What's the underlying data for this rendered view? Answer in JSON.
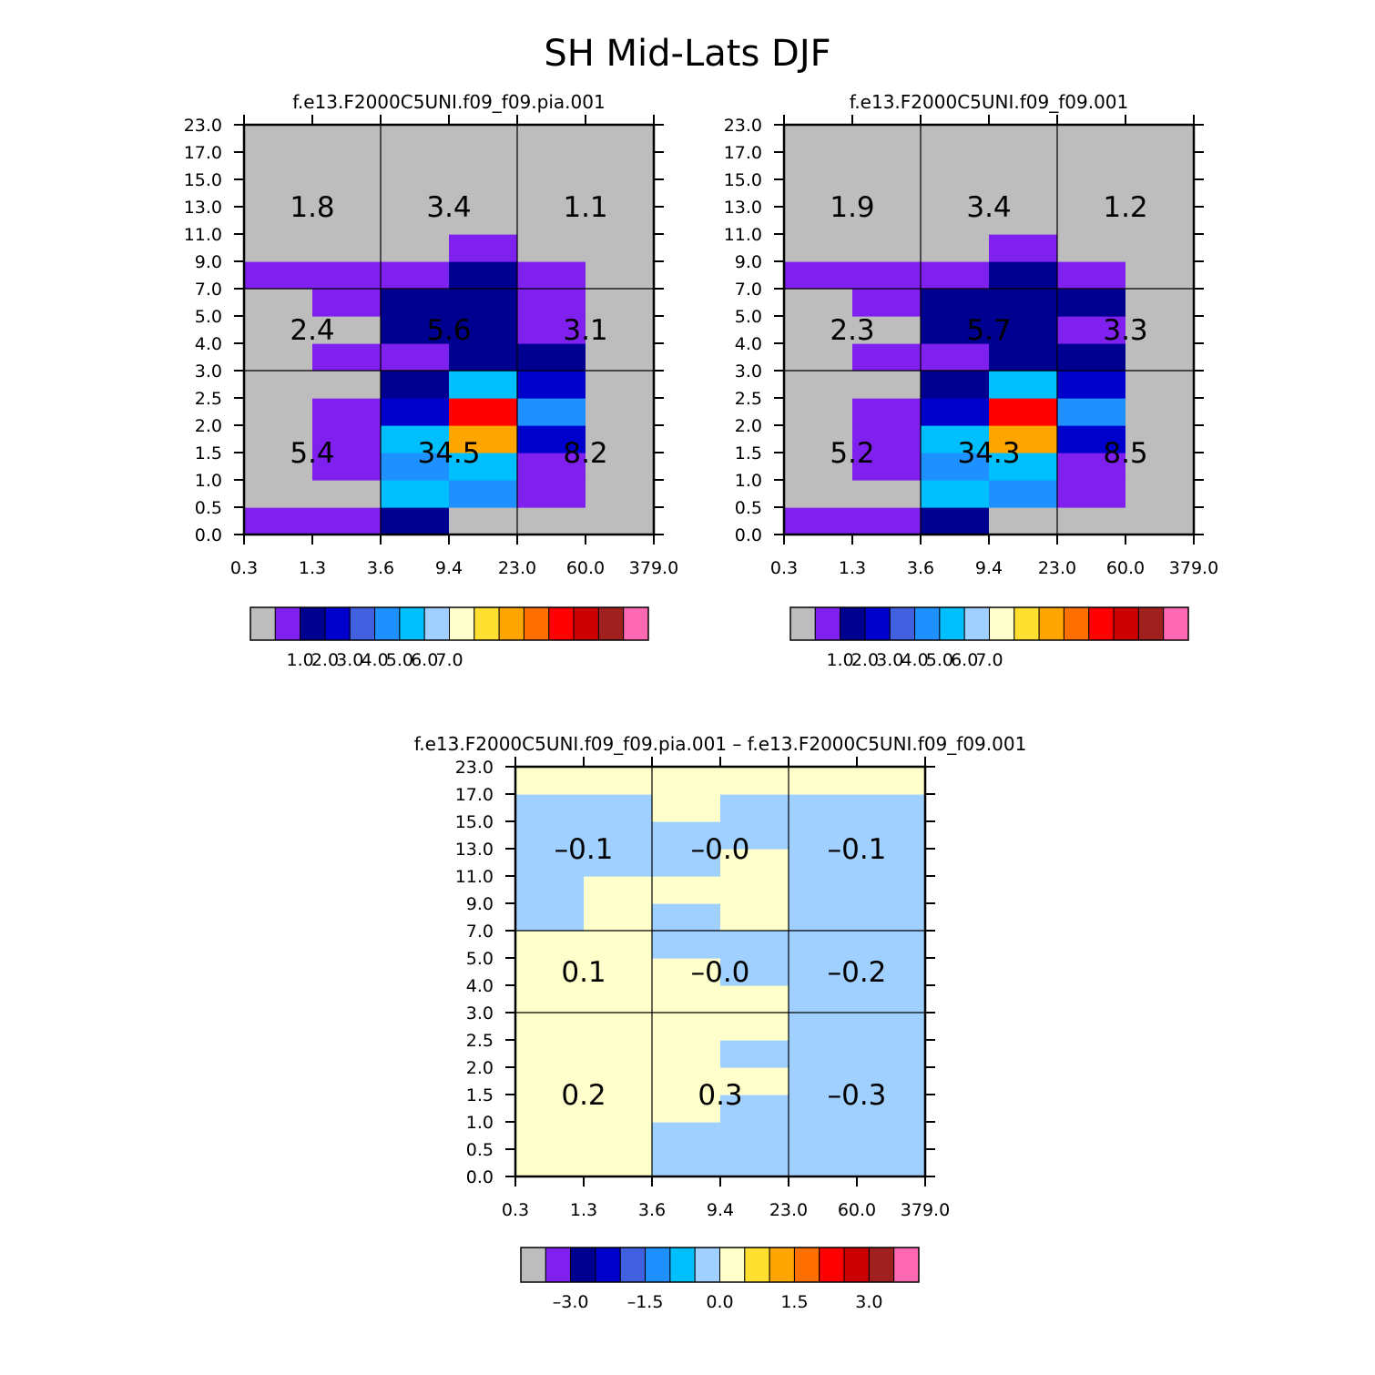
{
  "title": "SH Mid-Lats DJF",
  "colors": {
    "c0": "#bdbdbd",
    "c1": "#8020ee",
    "c2": "#000090",
    "c3": "#0000cc",
    "c4": "#4060e0",
    "c5": "#1e90ff",
    "c6": "#00bfff",
    "c7": "#a0d0ff",
    "c8": "#ffffcc",
    "c9": "#ffe030",
    "c10": "#ffa500",
    "c11": "#ff7000",
    "c12": "#ff0000",
    "c13": "#cc0000",
    "c14": "#a02020",
    "c15": "#ff69b4"
  },
  "chart_data": [
    {
      "type": "heatmap",
      "title": "f.e13.F2000C5UNI.f09_f09.pia.001",
      "xlabel": "",
      "ylabel": "",
      "x_tick_labels": [
        "0.3",
        "1.3",
        "3.6",
        "9.4",
        "23.0",
        "60.0",
        "379.0"
      ],
      "y_tick_labels": [
        "0.0",
        "0.5",
        "1.0",
        "1.5",
        "2.0",
        "2.5",
        "3.0",
        "4.0",
        "5.0",
        "7.0",
        "9.0",
        "11.0",
        "13.0",
        "15.0",
        "17.0",
        "23.0"
      ],
      "grid_color_index": [
        [
          1,
          1,
          2,
          0,
          0,
          0
        ],
        [
          0,
          0,
          6,
          5,
          1,
          0
        ],
        [
          0,
          1,
          5,
          6,
          1,
          0
        ],
        [
          0,
          1,
          6,
          10,
          3,
          0
        ],
        [
          0,
          1,
          3,
          12,
          5,
          0
        ],
        [
          0,
          0,
          2,
          6,
          3,
          0
        ],
        [
          0,
          1,
          1,
          2,
          2,
          0
        ],
        [
          0,
          0,
          2,
          2,
          1,
          0
        ],
        [
          0,
          1,
          2,
          2,
          1,
          0
        ],
        [
          1,
          1,
          1,
          2,
          1,
          0
        ],
        [
          0,
          0,
          0,
          1,
          0,
          0
        ],
        [
          0,
          0,
          0,
          0,
          0,
          0
        ],
        [
          0,
          0,
          0,
          0,
          0,
          0
        ],
        [
          0,
          0,
          0,
          0,
          0,
          0
        ],
        [
          0,
          0,
          0,
          0,
          0,
          0
        ]
      ],
      "region_values": [
        [
          "5.4",
          "34.5",
          "8.2"
        ],
        [
          "2.4",
          "5.6",
          "3.1"
        ],
        [
          "1.8",
          "3.4",
          "1.1"
        ]
      ],
      "colorbar_labels": [
        "1.0",
        "2.0",
        "3.0",
        "4.0",
        "5.0",
        "6.0",
        "7.0"
      ]
    },
    {
      "type": "heatmap",
      "title": "f.e13.F2000C5UNI.f09_f09.001",
      "xlabel": "",
      "ylabel": "",
      "x_tick_labels": [
        "0.3",
        "1.3",
        "3.6",
        "9.4",
        "23.0",
        "60.0",
        "379.0"
      ],
      "y_tick_labels": [
        "0.0",
        "0.5",
        "1.0",
        "1.5",
        "2.0",
        "2.5",
        "3.0",
        "4.0",
        "5.0",
        "7.0",
        "9.0",
        "11.0",
        "13.0",
        "15.0",
        "17.0",
        "23.0"
      ],
      "grid_color_index": [
        [
          1,
          1,
          2,
          0,
          0,
          0
        ],
        [
          0,
          0,
          6,
          5,
          1,
          0
        ],
        [
          0,
          1,
          5,
          6,
          1,
          0
        ],
        [
          0,
          1,
          6,
          10,
          3,
          0
        ],
        [
          0,
          1,
          3,
          12,
          5,
          0
        ],
        [
          0,
          0,
          2,
          6,
          3,
          0
        ],
        [
          0,
          1,
          1,
          2,
          2,
          0
        ],
        [
          0,
          0,
          2,
          2,
          1,
          0
        ],
        [
          0,
          1,
          2,
          2,
          2,
          0
        ],
        [
          1,
          1,
          1,
          2,
          1,
          0
        ],
        [
          0,
          0,
          0,
          1,
          0,
          0
        ],
        [
          0,
          0,
          0,
          0,
          0,
          0
        ],
        [
          0,
          0,
          0,
          0,
          0,
          0
        ],
        [
          0,
          0,
          0,
          0,
          0,
          0
        ],
        [
          0,
          0,
          0,
          0,
          0,
          0
        ]
      ],
      "region_values": [
        [
          "5.2",
          "34.3",
          "8.5"
        ],
        [
          "2.3",
          "5.7",
          "3.3"
        ],
        [
          "1.9",
          "3.4",
          "1.2"
        ]
      ],
      "colorbar_labels": [
        "1.0",
        "2.0",
        "3.0",
        "4.0",
        "5.0",
        "6.0",
        "7.0"
      ]
    },
    {
      "type": "heatmap",
      "title": "f.e13.F2000C5UNI.f09_f09.pia.001 – f.e13.F2000C5UNI.f09_f09.001",
      "xlabel": "",
      "ylabel": "",
      "x_tick_labels": [
        "0.3",
        "1.3",
        "3.6",
        "9.4",
        "23.0",
        "60.0",
        "379.0"
      ],
      "y_tick_labels": [
        "0.0",
        "0.5",
        "1.0",
        "1.5",
        "2.0",
        "2.5",
        "3.0",
        "4.0",
        "5.0",
        "7.0",
        "9.0",
        "11.0",
        "13.0",
        "15.0",
        "17.0",
        "23.0"
      ],
      "grid_color_index": [
        [
          8,
          8,
          7,
          7,
          7,
          7
        ],
        [
          8,
          8,
          7,
          7,
          7,
          7
        ],
        [
          8,
          8,
          8,
          7,
          7,
          7
        ],
        [
          8,
          8,
          8,
          8,
          7,
          7
        ],
        [
          8,
          8,
          8,
          7,
          7,
          7
        ],
        [
          8,
          8,
          8,
          8,
          7,
          7
        ],
        [
          8,
          8,
          8,
          8,
          7,
          7
        ],
        [
          8,
          8,
          8,
          7,
          7,
          7
        ],
        [
          8,
          8,
          7,
          7,
          7,
          7
        ],
        [
          7,
          8,
          7,
          8,
          7,
          7
        ],
        [
          7,
          8,
          8,
          8,
          7,
          7
        ],
        [
          7,
          7,
          7,
          8,
          7,
          7
        ],
        [
          7,
          7,
          7,
          7,
          7,
          7
        ],
        [
          7,
          7,
          8,
          7,
          7,
          7
        ],
        [
          8,
          8,
          8,
          8,
          8,
          8
        ]
      ],
      "region_values": [
        [
          "0.2",
          "0.3",
          "–0.3"
        ],
        [
          "0.1",
          "–0.0",
          "–0.2"
        ],
        [
          "–0.1",
          "–0.0",
          "–0.1"
        ]
      ],
      "colorbar_labels": [
        "–3.0",
        "–1.5",
        "0.0",
        "1.5",
        "3.0"
      ]
    }
  ]
}
